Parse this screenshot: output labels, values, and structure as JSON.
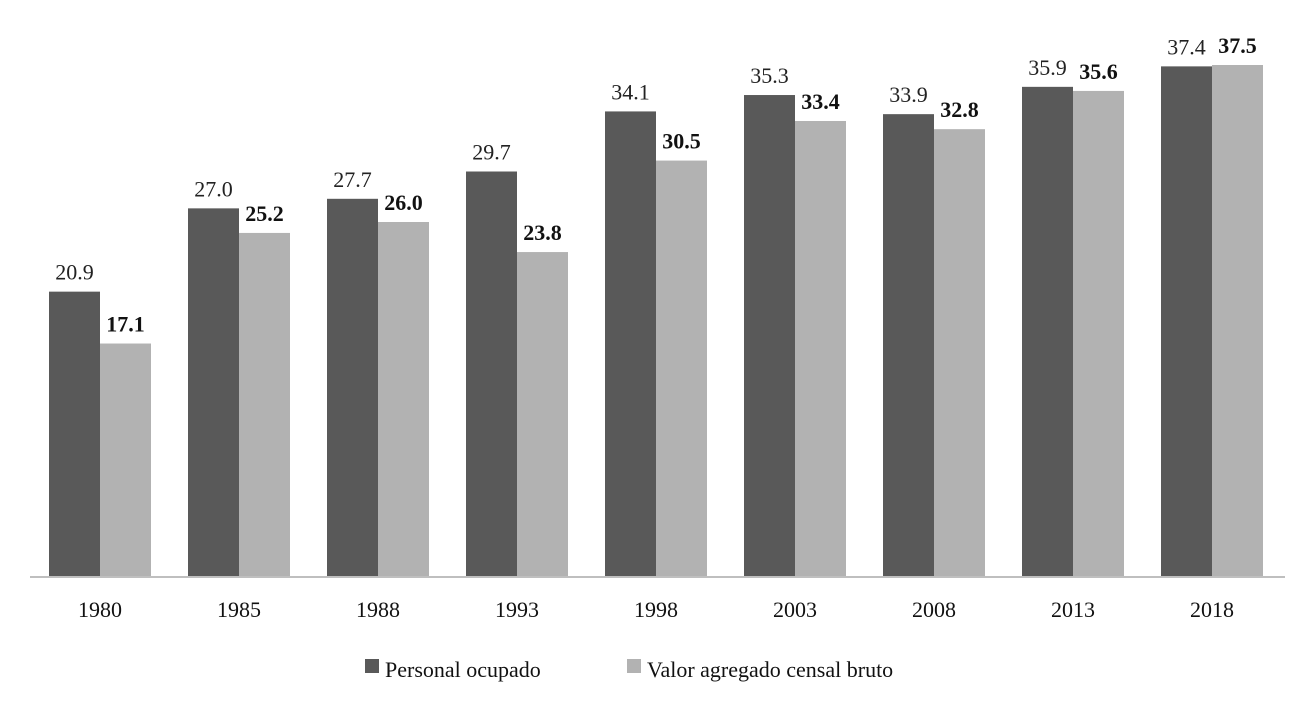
{
  "chart_data": {
    "type": "bar",
    "categories": [
      "1980",
      "1985",
      "1988",
      "1993",
      "1998",
      "2003",
      "2008",
      "2013",
      "2018"
    ],
    "series": [
      {
        "name": "Personal ocupado",
        "color": "#595959",
        "values": [
          20.9,
          27.0,
          27.7,
          29.7,
          34.1,
          35.3,
          33.9,
          35.9,
          37.4
        ],
        "labels": [
          "20.9",
          "27.0",
          "27.7",
          "29.7",
          "34.1",
          "35.3",
          "33.9",
          "35.9",
          "37.4"
        ],
        "label_bold": false
      },
      {
        "name": "Valor agregado censal bruto",
        "color": "#b2b2b2",
        "values": [
          17.1,
          25.2,
          26.0,
          23.8,
          30.5,
          33.4,
          32.8,
          35.6,
          37.5
        ],
        "labels": [
          "17.1",
          "25.2",
          "26.0",
          "23.8",
          "30.5",
          "33.4",
          "32.8",
          "35.6",
          "37.5"
        ],
        "label_bold": true
      }
    ],
    "title": "",
    "xlabel": "",
    "ylabel": "",
    "ylim": [
      0,
      37.5
    ],
    "grid": false,
    "legend_position": "bottom",
    "axis_color": "#bfbfbf"
  }
}
